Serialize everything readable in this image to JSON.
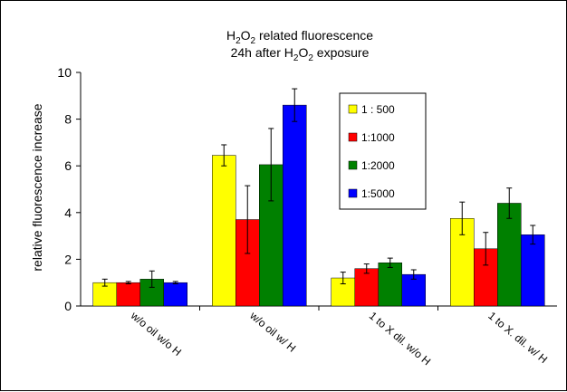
{
  "chart_data": {
    "type": "bar",
    "title": {
      "line1": {
        "pre": "H",
        "sub1": "2",
        "mid": "O",
        "sub2": "2",
        "post": " related fluorescence"
      },
      "line2": {
        "pre": "24h after H",
        "sub1": "2",
        "mid": "O",
        "sub2": "2",
        "post": " exposure"
      }
    },
    "ylabel": "relative fluorescence increase",
    "xlabel": "",
    "ylim": [
      0,
      10
    ],
    "yticks": [
      "0",
      "2",
      "4",
      "6",
      "8",
      "10"
    ],
    "categories": [
      "w/o oil w/o H",
      "w/o oil w/ H",
      "1 to X dil. w/o H",
      "1 to X. dil. w/ H"
    ],
    "series": [
      {
        "name": "1 : 500",
        "color": "#ffff00",
        "values": [
          1.0,
          6.45,
          1.2,
          3.75
        ],
        "errors": [
          0.15,
          0.45,
          0.25,
          0.7
        ]
      },
      {
        "name": "1:1000",
        "color": "#ff0000",
        "values": [
          1.0,
          3.7,
          1.6,
          2.45
        ],
        "errors": [
          0.05,
          1.45,
          0.2,
          0.7
        ]
      },
      {
        "name": "1:2000",
        "color": "#008000",
        "values": [
          1.15,
          6.05,
          1.85,
          4.4
        ],
        "errors": [
          0.35,
          1.55,
          0.2,
          0.65
        ]
      },
      {
        "name": "1:5000",
        "color": "#0000ff",
        "values": [
          1.0,
          8.6,
          1.35,
          3.05
        ],
        "errors": [
          0.05,
          0.7,
          0.2,
          0.4
        ]
      }
    ],
    "grid": false,
    "legend_position": "top-right inside plot"
  }
}
